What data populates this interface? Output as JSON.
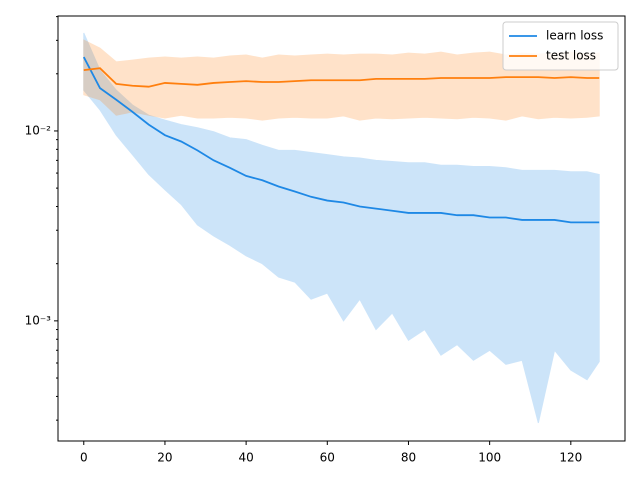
{
  "chart_data": {
    "type": "line",
    "x": [
      0,
      4,
      8,
      12,
      16,
      20,
      24,
      28,
      32,
      36,
      40,
      44,
      48,
      52,
      56,
      60,
      64,
      68,
      72,
      76,
      80,
      84,
      88,
      92,
      96,
      100,
      104,
      108,
      112,
      116,
      120,
      124,
      127
    ],
    "series": [
      {
        "name": "learn loss",
        "color": "#1e88e5",
        "values": [
          0.0245,
          0.0168,
          0.0146,
          0.0126,
          0.0108,
          0.0095,
          0.0088,
          0.0079,
          0.007,
          0.0064,
          0.0058,
          0.0055,
          0.0051,
          0.0048,
          0.0045,
          0.0043,
          0.0042,
          0.004,
          0.0039,
          0.0038,
          0.0037,
          0.0037,
          0.0037,
          0.0036,
          0.0036,
          0.0035,
          0.0035,
          0.0034,
          0.0034,
          0.0034,
          0.0033,
          0.0033,
          0.0033
        ],
        "upper": [
          0.0328,
          0.0209,
          0.0164,
          0.0137,
          0.0121,
          0.0114,
          0.0108,
          0.0104,
          0.0099,
          0.0092,
          0.009,
          0.0084,
          0.0079,
          0.0079,
          0.0077,
          0.0075,
          0.0073,
          0.0072,
          0.007,
          0.0069,
          0.0068,
          0.0068,
          0.0066,
          0.0066,
          0.0065,
          0.0065,
          0.0064,
          0.0062,
          0.0062,
          0.0062,
          0.0061,
          0.0061,
          0.0059
        ],
        "lower": [
          0.0164,
          0.0129,
          0.0095,
          0.0075,
          0.0059,
          0.0049,
          0.0041,
          0.0032,
          0.0028,
          0.0025,
          0.0022,
          0.002,
          0.0017,
          0.0016,
          0.0013,
          0.0014,
          0.001,
          0.0013,
          0.0009,
          0.0011,
          0.00079,
          0.0009,
          0.00066,
          0.00075,
          0.00062,
          0.0007,
          0.00059,
          0.00062,
          0.00029,
          0.0007,
          0.00055,
          0.00049,
          0.00061
        ]
      },
      {
        "name": "test loss",
        "color": "#ff7f0e",
        "values": [
          0.0209,
          0.0214,
          0.0177,
          0.0173,
          0.0171,
          0.0179,
          0.0177,
          0.0175,
          0.0179,
          0.0181,
          0.0183,
          0.0181,
          0.0181,
          0.0183,
          0.0185,
          0.0185,
          0.0185,
          0.0185,
          0.0188,
          0.0188,
          0.0188,
          0.0188,
          0.019,
          0.019,
          0.019,
          0.019,
          0.0192,
          0.0192,
          0.0192,
          0.019,
          0.0192,
          0.019,
          0.019
        ],
        "upper": [
          0.0301,
          0.0273,
          0.0231,
          0.0236,
          0.0242,
          0.0245,
          0.0242,
          0.0245,
          0.0242,
          0.0248,
          0.0251,
          0.0242,
          0.0251,
          0.0248,
          0.0251,
          0.0254,
          0.0251,
          0.0254,
          0.0254,
          0.0251,
          0.0257,
          0.0254,
          0.026,
          0.0251,
          0.0257,
          0.026,
          0.0251,
          0.0257,
          0.0254,
          0.0257,
          0.026,
          0.0254,
          0.0257
        ],
        "lower": [
          0.0155,
          0.0146,
          0.0121,
          0.0126,
          0.0121,
          0.0117,
          0.0121,
          0.0117,
          0.0117,
          0.0118,
          0.0117,
          0.0114,
          0.0117,
          0.0118,
          0.0117,
          0.0117,
          0.012,
          0.0114,
          0.0117,
          0.0116,
          0.0117,
          0.0118,
          0.0117,
          0.0116,
          0.0118,
          0.0117,
          0.0114,
          0.012,
          0.0116,
          0.0118,
          0.0117,
          0.0118,
          0.012
        ]
      }
    ],
    "xlim": [
      -6.35,
      133.35
    ],
    "xticks": [
      0,
      20,
      40,
      60,
      80,
      100,
      120
    ],
    "ylim": [
      0.000233,
      0.0403
    ],
    "log_y": true,
    "yticks": [
      {
        "value": 0.001,
        "label": "10⁻³"
      },
      {
        "value": 0.01,
        "label": "10⁻²"
      }
    ],
    "yminorticks": [
      0.0003,
      0.0004,
      0.0005,
      0.0006,
      0.0007,
      0.0008,
      0.0009,
      0.002,
      0.003,
      0.004,
      0.005,
      0.006,
      0.007,
      0.008,
      0.009,
      0.02,
      0.03,
      0.04
    ],
    "legend": "upper right"
  }
}
